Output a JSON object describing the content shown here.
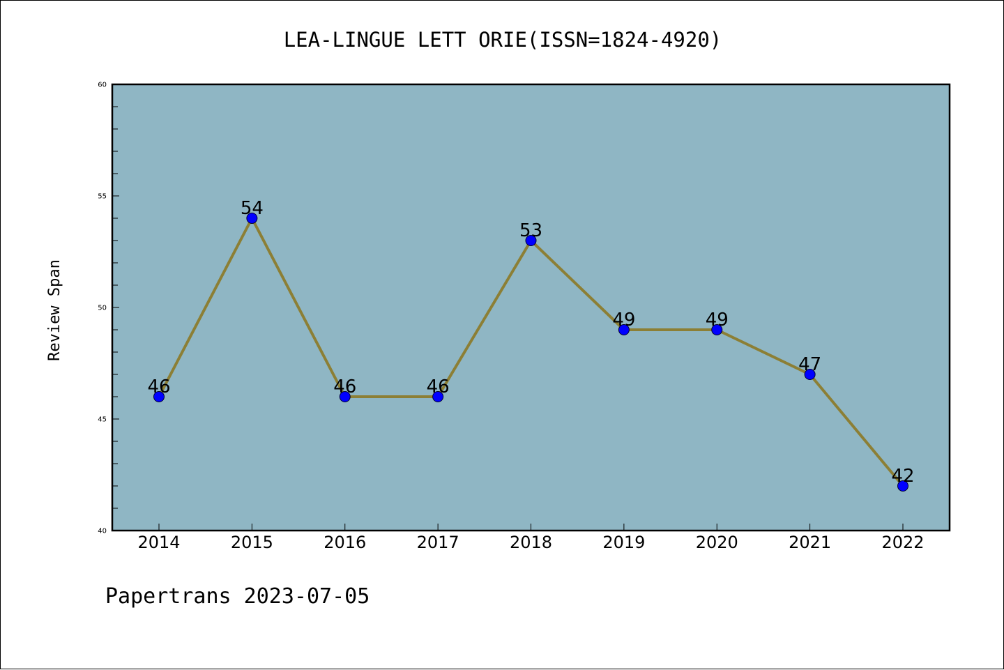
{
  "chart_data": {
    "type": "line",
    "title": "LEA-LINGUE LETT ORIE(ISSN=1824-4920)",
    "ylabel": "Review Span",
    "xlabel": "",
    "categories": [
      "2014",
      "2015",
      "2016",
      "2017",
      "2018",
      "2019",
      "2020",
      "2021",
      "2022"
    ],
    "values": [
      46,
      54,
      46,
      46,
      53,
      49,
      49,
      47,
      42
    ],
    "ylim": [
      40,
      60
    ],
    "yticks": [
      "40",
      "45",
      "50",
      "55",
      "60"
    ],
    "grid": false,
    "data_labels": true,
    "colors": {
      "plot_background": "#8fb6c4",
      "line": "#8c7f35",
      "marker": "#0000ff"
    }
  },
  "footer": "Papertrans 2023-07-05"
}
